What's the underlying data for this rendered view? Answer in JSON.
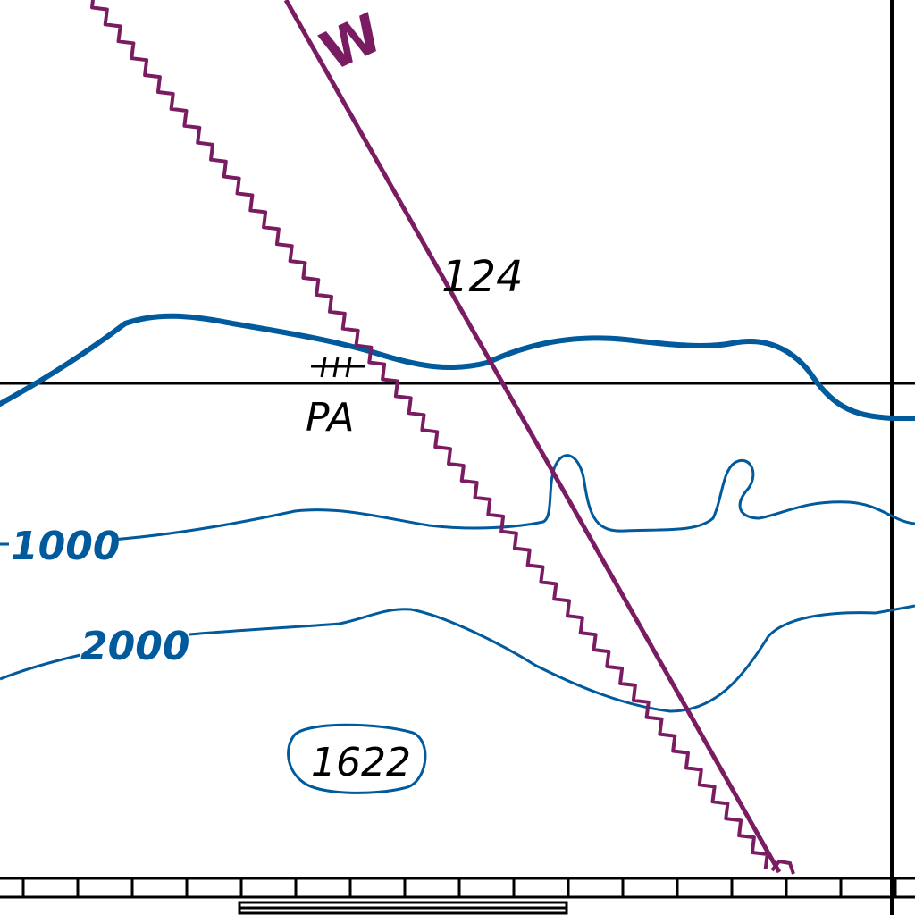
{
  "chart": {
    "title": "",
    "colors": {
      "contour": "#005a9c",
      "magnetic": "#7a1c62",
      "grid": "#000000",
      "background": "#ffffff"
    },
    "bearing_label": "W",
    "line_label": "124",
    "pa_label": "PA",
    "contours": [
      {
        "name": "shoreline",
        "label": ""
      },
      {
        "name": "1000",
        "label": "1000"
      },
      {
        "name": "2000",
        "label": "2000"
      }
    ],
    "spot_sounding": "1622"
  }
}
